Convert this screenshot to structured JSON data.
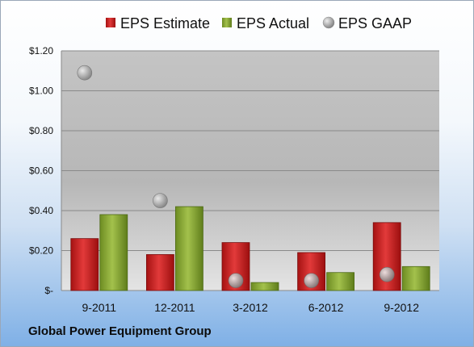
{
  "chart_data": {
    "type": "bar",
    "categories": [
      "9-2011",
      "12-2011",
      "3-2012",
      "6-2012",
      "9-2012"
    ],
    "series": [
      {
        "name": "EPS Estimate",
        "kind": "bar",
        "color": "#d42020",
        "values": [
          0.26,
          0.18,
          0.24,
          0.19,
          0.34
        ]
      },
      {
        "name": "EPS Actual",
        "kind": "bar",
        "color": "#8fb33a",
        "values": [
          0.38,
          0.42,
          0.04,
          0.09,
          0.12
        ]
      },
      {
        "name": "EPS GAAP",
        "kind": "marker",
        "color": "#b8bcc4",
        "values": [
          1.09,
          0.45,
          0.05,
          0.05,
          0.08
        ]
      }
    ],
    "y_ticks": [
      {
        "value": 0,
        "label": "$-"
      },
      {
        "value": 0.2,
        "label": "$0.20"
      },
      {
        "value": 0.4,
        "label": "$0.40"
      },
      {
        "value": 0.6,
        "label": "$0.60"
      },
      {
        "value": 0.8,
        "label": "$0.80"
      },
      {
        "value": 1.0,
        "label": "$1.00"
      },
      {
        "value": 1.2,
        "label": "$1.20"
      }
    ],
    "ylim": [
      0,
      1.2
    ],
    "grid": true,
    "legend_position": "top"
  },
  "footer": {
    "company": "Global Power Equipment Group"
  }
}
